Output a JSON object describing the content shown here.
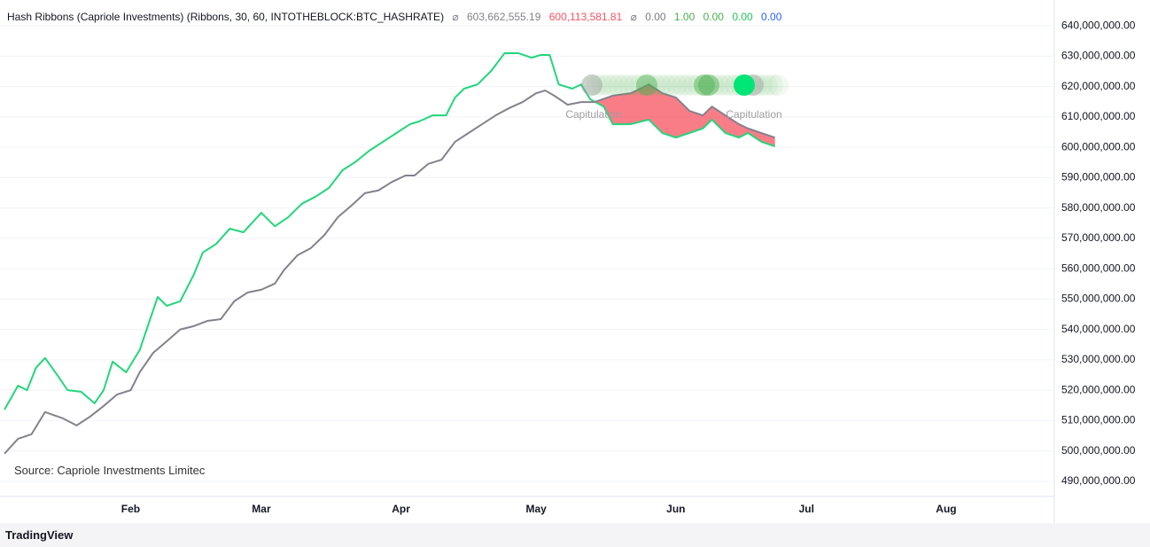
{
  "chart_data": {
    "type": "line",
    "header": {
      "title": "Hash Ribbons (Capriole Investments) (Ribbons, 30, 60, INTOTHEBLOCK:BTC_HASHRATE)",
      "symbol": "⌀",
      "value1": "603,662,555.19",
      "value2": "600,113,581.81",
      "symbol2": "⌀",
      "value3": "0.00",
      "value4": "1.00",
      "value5": "0.00",
      "value6": "0.00",
      "value7": "0.00"
    },
    "annotations": [
      "Capitulation",
      "Capitulation"
    ],
    "source": "Source: Capriole Investments Limitec",
    "brand": "TradingView",
    "xlim": [
      -1,
      233
    ],
    "xticks": [
      {
        "value": 28,
        "label": "Feb"
      },
      {
        "value": 57,
        "label": "Mar"
      },
      {
        "value": 88,
        "label": "Apr"
      },
      {
        "value": 118,
        "label": "May"
      },
      {
        "value": 149,
        "label": "Jun"
      },
      {
        "value": 178,
        "label": "Jul"
      },
      {
        "value": 209,
        "label": "Aug"
      }
    ],
    "ylim": [
      485000000,
      648500000
    ],
    "yticks": [
      {
        "value": 490000000,
        "label": "490,000,000.00"
      },
      {
        "value": 500000000,
        "label": "500,000,000.00"
      },
      {
        "value": 510000000,
        "label": "510,000,000.00"
      },
      {
        "value": 520000000,
        "label": "520,000,000.00"
      },
      {
        "value": 530000000,
        "label": "530,000,000.00"
      },
      {
        "value": 540000000,
        "label": "540,000,000.00"
      },
      {
        "value": 550000000,
        "label": "550,000,000.00"
      },
      {
        "value": 560000000,
        "label": "560,000,000.00"
      },
      {
        "value": 570000000,
        "label": "570,000,000.00"
      },
      {
        "value": 580000000,
        "label": "580,000,000.00"
      },
      {
        "value": 590000000,
        "label": "590,000,000.00"
      },
      {
        "value": 600000000,
        "label": "600,000,000.00"
      },
      {
        "value": 610000000,
        "label": "610,000,000.00"
      },
      {
        "value": 620000000,
        "label": "620,000,000.00"
      },
      {
        "value": 630000000,
        "label": "630,000,000.00"
      },
      {
        "value": 640000000,
        "label": "640,000,000.00"
      }
    ],
    "grid": true,
    "fill_color": "#f7525f",
    "series": [
      {
        "color": "#22d67a",
        "x": [
          0,
          3,
          5,
          7,
          9,
          12,
          14,
          17,
          20,
          22,
          24,
          27,
          30,
          31,
          34,
          36,
          39,
          42,
          44,
          47,
          50,
          53,
          57,
          60,
          63,
          66,
          69,
          72,
          75,
          78,
          81,
          84,
          87,
          90,
          92,
          95,
          98,
          100,
          102,
          105,
          108,
          111,
          114,
          117,
          119,
          121,
          123,
          126,
          128,
          130,
          133,
          135,
          139,
          143,
          146,
          149,
          152,
          155,
          157,
          160,
          163,
          165,
          168,
          171
        ],
        "values": [
          513600000,
          521500000,
          520000000,
          527400000,
          530600000,
          524400000,
          520000000,
          519500000,
          515700000,
          520000000,
          529400000,
          525900000,
          533200000,
          537600000,
          550700000,
          547800000,
          549300000,
          558000000,
          565300000,
          568200000,
          573200000,
          572000000,
          578400000,
          574000000,
          577000000,
          581400000,
          583700000,
          586600000,
          592400000,
          595300000,
          598900000,
          601800000,
          604700000,
          607600000,
          608500000,
          610500000,
          610500000,
          616400000,
          619300000,
          620700000,
          625100000,
          631000000,
          631000000,
          629500000,
          630400000,
          630400000,
          620700000,
          619300000,
          620700000,
          615800000,
          613400000,
          607600000,
          607600000,
          609100000,
          604700000,
          603200000,
          604700000,
          606200000,
          609100000,
          604700000,
          603200000,
          604700000,
          601800000,
          600300000
        ]
      },
      {
        "color": "#84818d",
        "x": [
          0,
          3,
          6,
          9,
          13,
          16,
          19,
          22,
          25,
          28,
          30,
          33,
          36,
          39,
          42,
          45,
          48,
          51,
          54,
          57,
          60,
          62,
          65,
          68,
          71,
          74,
          77,
          80,
          83,
          86,
          89,
          91,
          94,
          97,
          100,
          103,
          106,
          109,
          112,
          115,
          118,
          120,
          122,
          125,
          128,
          131,
          135,
          139,
          143,
          146,
          149,
          152,
          155,
          157,
          160,
          163,
          165,
          168,
          171
        ],
        "values": [
          499100000,
          504000000,
          505500000,
          512800000,
          510700000,
          508400000,
          511300000,
          514800000,
          518600000,
          520000000,
          525900000,
          532300000,
          536100000,
          540000000,
          541100000,
          542800000,
          543400000,
          549300000,
          552200000,
          553100000,
          555100000,
          559500000,
          564400000,
          566800000,
          571100000,
          577000000,
          580800000,
          584900000,
          585800000,
          588600000,
          590700000,
          590700000,
          594500000,
          595900000,
          601800000,
          604700000,
          607600000,
          610500000,
          612900000,
          614900000,
          617800000,
          618700000,
          617000000,
          614000000,
          614900000,
          614900000,
          617000000,
          617800000,
          620700000,
          617800000,
          616400000,
          612000000,
          610500000,
          613400000,
          610500000,
          607600000,
          606200000,
          604700000,
          603200000
        ]
      }
    ]
  }
}
